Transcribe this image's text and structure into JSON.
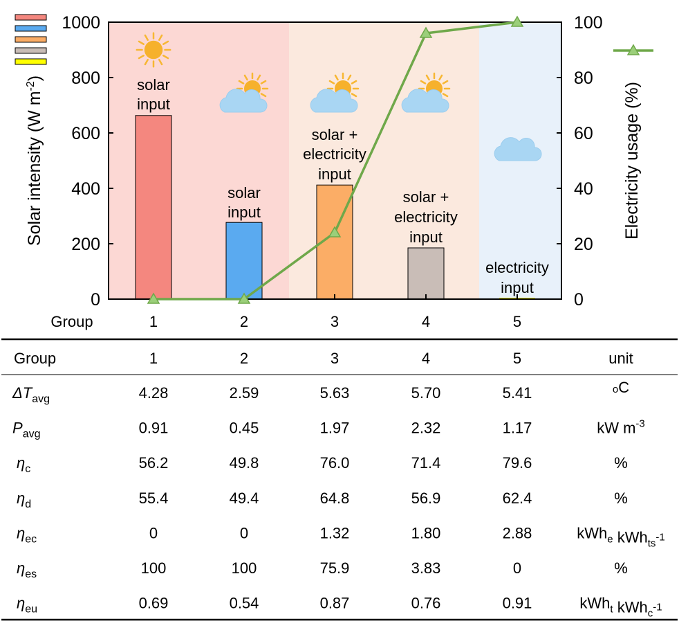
{
  "chart_data": {
    "type": "bar",
    "categories": [
      "1",
      "2",
      "3",
      "4",
      "5"
    ],
    "xlabel": "Group",
    "ylabel": "Solar intensity (W m-2)",
    "ylabel_parts": {
      "main": "Solar intensity (W m",
      "sup": "-2",
      "end": ")"
    },
    "y2label": "Electricity usage (%)",
    "ylim": [
      0,
      1000
    ],
    "y2lim": [
      0,
      100
    ],
    "yticks": [
      "0",
      "200",
      "400",
      "600",
      "800",
      "1000"
    ],
    "y2ticks": [
      "0",
      "20",
      "40",
      "60",
      "80",
      "100"
    ],
    "series": [
      {
        "name": "Solar intensity",
        "type": "bar",
        "values": [
          663,
          277,
          412,
          185,
          5
        ],
        "colors": [
          "#f4877f",
          "#5aaaf0",
          "#fbad66",
          "#c9bdb7",
          "#ffff00"
        ]
      },
      {
        "name": "Electricity usage",
        "type": "line",
        "axis": "right",
        "values": [
          0,
          0,
          24,
          96,
          100
        ],
        "color": "#6fa84a"
      }
    ],
    "regions": [
      {
        "from": "1",
        "to": "2",
        "color": "#fcd8d4"
      },
      {
        "from": "3",
        "to": "4",
        "color": "#fbe9de"
      },
      {
        "from": "5",
        "to": "5",
        "color": "#e8f1fa"
      }
    ],
    "annotations": [
      {
        "group": 0,
        "lines": [
          "solar",
          "input"
        ],
        "icon": "sun-icon"
      },
      {
        "group": 1,
        "lines": [
          "solar",
          "input"
        ],
        "icon": "sun-cloud-icon"
      },
      {
        "group": 2,
        "lines": [
          "solar +",
          "electricity",
          "input"
        ],
        "icon": "sun-cloud-icon"
      },
      {
        "group": 3,
        "lines": [
          "solar +",
          "electricity",
          "input"
        ],
        "icon": "sun-cloud-icon"
      },
      {
        "group": 4,
        "lines": [
          "electricity",
          "input"
        ],
        "icon": "cloud-icon"
      }
    ],
    "legend": "top-left (bars), top-right (line)"
  },
  "table": {
    "header": [
      "Group",
      "1",
      "2",
      "3",
      "4",
      "5",
      "unit"
    ],
    "rows": [
      {
        "sym": "ΔT",
        "sub": "avg",
        "values": [
          "4.28",
          "2.59",
          "5.63",
          "5.70",
          "5.41"
        ],
        "unit": [
          [
            "",
            "o",
            ""
          ],
          [
            "C",
            "",
            ""
          ]
        ]
      },
      {
        "sym": "P",
        "sub": "avg",
        "values": [
          "0.91",
          "0.45",
          "1.97",
          "2.32",
          "1.17"
        ],
        "unit": [
          [
            "kW m",
            "",
            "-3"
          ]
        ]
      },
      {
        "sym": "η",
        "sub": "c",
        "values": [
          "56.2",
          "49.8",
          "76.0",
          "71.4",
          "79.6"
        ],
        "unit": [
          [
            "%",
            "",
            ""
          ]
        ]
      },
      {
        "sym": "η",
        "sub": "d",
        "values": [
          "55.4",
          "49.4",
          "64.8",
          "56.9",
          "62.4"
        ],
        "unit": [
          [
            "%",
            "",
            ""
          ]
        ]
      },
      {
        "sym": "η",
        "sub": "ec",
        "values": [
          "0",
          "0",
          "1.32",
          "1.80",
          "2.88"
        ],
        "unit": [
          [
            "kWh",
            "e",
            ""
          ],
          [
            " kWh",
            "ts",
            "-1"
          ]
        ]
      },
      {
        "sym": "η",
        "sub": "es",
        "values": [
          "100",
          "100",
          "75.9",
          "3.83",
          "0"
        ],
        "unit": [
          [
            "%",
            "",
            ""
          ]
        ]
      },
      {
        "sym": "η",
        "sub": "eu",
        "values": [
          "0.69",
          "0.54",
          "0.87",
          "0.76",
          "0.91"
        ],
        "unit": [
          [
            "kWh",
            "t",
            ""
          ],
          [
            " kWh",
            "c",
            "-1"
          ]
        ]
      }
    ]
  }
}
